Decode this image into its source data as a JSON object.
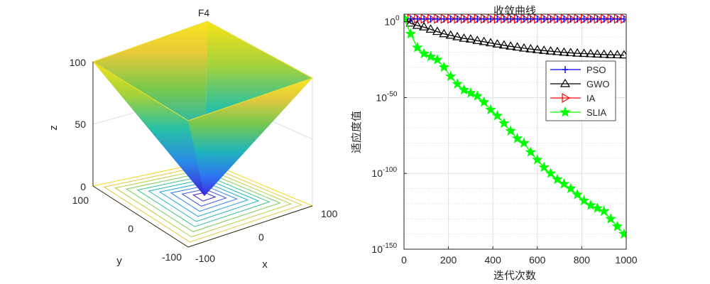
{
  "chart_data": [
    {
      "type": "surface3d",
      "title": "F4",
      "xlabel": "x",
      "ylabel": "y",
      "zlabel": "z",
      "xticks": [
        "-100",
        "0",
        "100"
      ],
      "yticks": [
        "-100",
        "0",
        "100"
      ],
      "zticks": [
        "0",
        "50",
        "100"
      ],
      "xlim": [
        -100,
        100
      ],
      "ylim": [
        -100,
        100
      ],
      "zlim": [
        0,
        100
      ],
      "contour_levels": [
        10,
        20,
        30,
        40,
        50,
        60,
        70,
        80,
        90,
        100
      ]
    },
    {
      "type": "line",
      "title": "收敛曲线",
      "xlabel": "迭代次数",
      "ylabel": "适应度值",
      "xlim": [
        0,
        1000
      ],
      "ylim_log10": [
        -150,
        5
      ],
      "y_scale": "log",
      "xticks": [
        "0",
        "200",
        "400",
        "600",
        "800",
        "1000"
      ],
      "ytick_base": "10",
      "ytick_exponents": [
        "0",
        "-50",
        "-100",
        "-150"
      ],
      "grid": true,
      "legend_position": "upper-right",
      "x": [
        1,
        30,
        60,
        90,
        120,
        150,
        180,
        210,
        240,
        270,
        300,
        330,
        360,
        390,
        420,
        450,
        480,
        510,
        540,
        570,
        600,
        630,
        660,
        690,
        720,
        750,
        780,
        810,
        840,
        870,
        900,
        930,
        960,
        990
      ],
      "series": [
        {
          "name": "PSO",
          "color": "#0000ff",
          "marker": "plus",
          "log10_values": [
            2,
            1.9,
            1.9,
            1.8,
            1.8,
            1.8,
            1.8,
            1.8,
            1.8,
            1.8,
            1.8,
            1.8,
            1.8,
            1.8,
            1.8,
            1.8,
            1.8,
            1.8,
            1.8,
            1.8,
            1.8,
            1.8,
            1.8,
            1.8,
            1.8,
            1.8,
            1.8,
            1.8,
            1.8,
            1.8,
            1.8,
            1.8,
            1.8,
            1.8
          ]
        },
        {
          "name": "GWO",
          "color": "#000000",
          "marker": "triangle-up",
          "log10_values": [
            2,
            -1,
            -2.5,
            -3.5,
            -5,
            -6.5,
            -8,
            -9,
            -10,
            -11,
            -11.5,
            -12.5,
            -13.2,
            -14,
            -14.8,
            -15.5,
            -16.2,
            -16.8,
            -17.5,
            -18,
            -18.5,
            -19,
            -19.4,
            -19.8,
            -20.2,
            -20.5,
            -20.8,
            -21,
            -21.2,
            -21.4,
            -21.6,
            -21.8,
            -21.9,
            -22
          ]
        },
        {
          "name": "IA",
          "color": "#ff0000",
          "marker": "triangle-right",
          "log10_values": [
            2,
            2,
            2,
            2,
            2,
            2,
            2,
            2,
            2,
            2,
            2,
            2,
            2,
            2,
            2,
            2,
            2,
            2,
            2,
            2,
            2,
            2,
            2,
            2,
            2,
            2,
            2,
            2,
            2,
            2,
            2,
            2,
            2,
            2
          ]
        },
        {
          "name": "SLIA",
          "color": "#00ff00",
          "marker": "star",
          "log10_values": [
            2,
            -8,
            -17,
            -21,
            -23,
            -25,
            -30,
            -36,
            -41,
            -45,
            -47,
            -49,
            -53,
            -58,
            -62,
            -67,
            -72,
            -77,
            -80,
            -86,
            -91,
            -96,
            -100,
            -104,
            -107,
            -110,
            -114,
            -118,
            -121,
            -123,
            -125,
            -130,
            -135,
            -140
          ]
        }
      ]
    }
  ]
}
